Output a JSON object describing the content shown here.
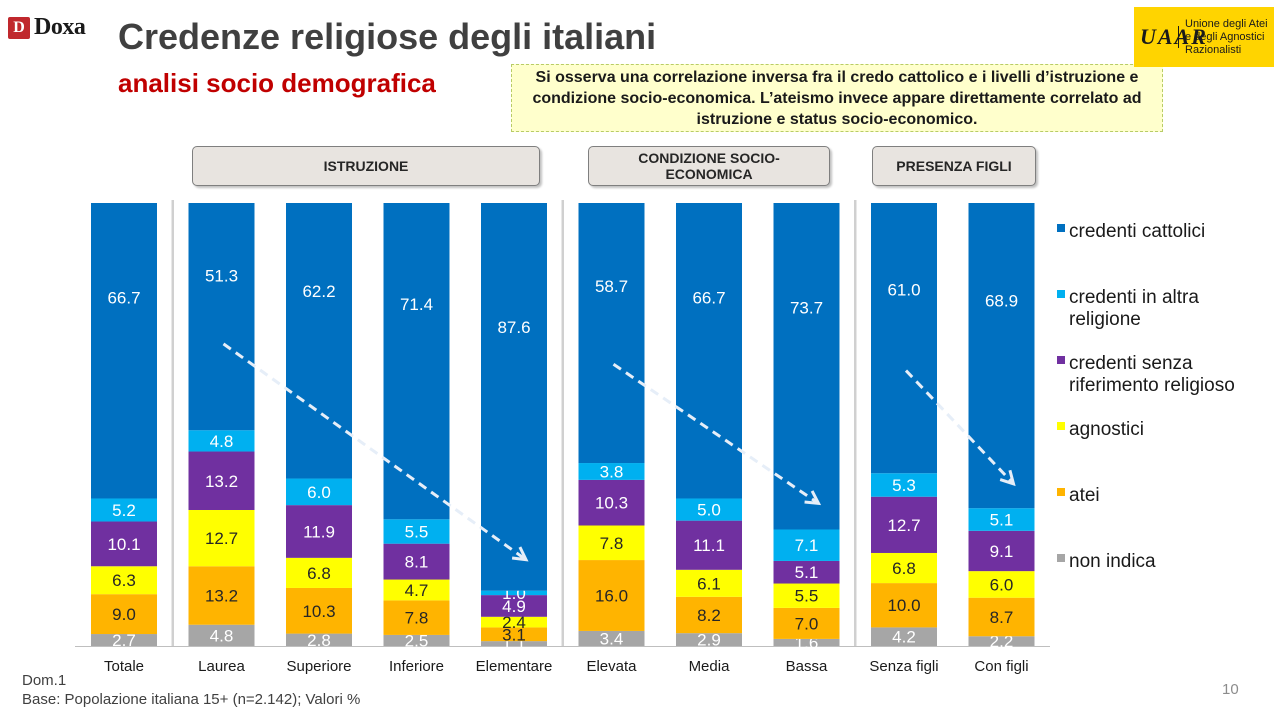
{
  "header": {
    "logo_mark": "D",
    "logo_text": "Doxa",
    "title": "Credenze religiose degli italiani",
    "subtitle": "analisi socio demografica",
    "note": "Si osserva una correlazione inversa fra il credo cattolico e i livelli d’istruzione e condizione socio-economica.  L’ateismo invece appare direttamente correlato ad istruzione e status socio-economico.",
    "uaar_mark": "UAAR",
    "uaar_text": "Unione degli Atei\ne degli Agnostici\nRazionalisti"
  },
  "groups": [
    {
      "label": "ISTRUZIONE"
    },
    {
      "label": "CONDIZIONE SOCIO-ECONOMICA"
    },
    {
      "label": "PRESENZA FIGLI"
    }
  ],
  "footer": {
    "dom": "Dom.1",
    "base": "Base: Popolazione italiana 15+ (n=2.142); Valori %",
    "page": "10"
  },
  "chart_data": {
    "type": "bar",
    "stacked": true,
    "percent": true,
    "categories": [
      "Totale",
      "Laurea",
      "Superiore",
      "Inferiore",
      "Elementare",
      "Elevata",
      "Media",
      "Bassa",
      "Senza figli",
      "Con figli"
    ],
    "series": [
      {
        "name": "non indica",
        "color": "#a6a6a6",
        "values": [
          2.7,
          4.8,
          2.8,
          2.5,
          1.1,
          3.4,
          2.9,
          1.6,
          4.2,
          2.2
        ]
      },
      {
        "name": "atei",
        "color": "#ffb400",
        "values": [
          9.0,
          13.2,
          10.3,
          7.8,
          3.1,
          16.0,
          8.2,
          7.0,
          10.0,
          8.7
        ]
      },
      {
        "name": "agnostici",
        "color": "#ffff00",
        "values": [
          6.3,
          12.7,
          6.8,
          4.7,
          2.4,
          7.8,
          6.1,
          5.5,
          6.8,
          6.0
        ]
      },
      {
        "name": "credenti senza riferimento religioso",
        "color": "#7030a0",
        "values": [
          10.1,
          13.2,
          11.9,
          8.1,
          4.9,
          10.3,
          11.1,
          5.1,
          12.7,
          9.1
        ]
      },
      {
        "name": "credenti in altra religione",
        "color": "#00b0f0",
        "values": [
          5.2,
          4.8,
          6.0,
          5.5,
          1.0,
          3.8,
          5.0,
          7.1,
          5.3,
          5.1
        ]
      },
      {
        "name": "credenti cattolici",
        "color": "#0070c0",
        "values": [
          66.7,
          51.3,
          62.2,
          71.4,
          87.6,
          58.7,
          66.7,
          73.7,
          61.0,
          68.9
        ]
      }
    ],
    "legend_order": [
      "credenti cattolici",
      "credenti in altra religione",
      "credenti senza riferimento religioso",
      "agnostici",
      "atei",
      "non indica"
    ],
    "legend_position": "right",
    "ylim": [
      0,
      100
    ],
    "trend_arrows": [
      {
        "from": "Laurea",
        "to": "Elementare"
      },
      {
        "from": "Elevata",
        "to": "Bassa"
      },
      {
        "from": "Senza figli",
        "to": "Con figli"
      }
    ]
  }
}
